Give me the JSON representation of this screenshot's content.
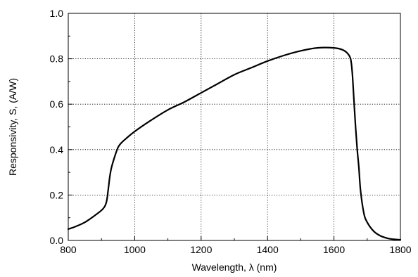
{
  "chart_data": {
    "type": "line",
    "title": "",
    "xlabel": "Wavelength, λ (nm)",
    "ylabel": "Responsivity, S, (A/W)",
    "xlim": [
      800,
      1800
    ],
    "ylim": [
      0.0,
      1.0
    ],
    "xticks": [
      800,
      1000,
      1200,
      1400,
      1600,
      1800
    ],
    "xtick_labels": [
      "800",
      "1000",
      "1200",
      "1400",
      "1600",
      "1800"
    ],
    "yticks": [
      0.0,
      0.2,
      0.4,
      0.6,
      0.8,
      1.0
    ],
    "ytick_labels": [
      "0.0",
      "0.2",
      "0.4",
      "0.6",
      "0.8",
      "1.0"
    ],
    "grid": true,
    "line_color": "#000000",
    "series": [
      {
        "x": [
          800,
          820,
          850,
          880,
          905,
          915,
          920,
          925,
          930,
          940,
          950,
          960,
          975,
          1000,
          1050,
          1100,
          1150,
          1200,
          1250,
          1300,
          1350,
          1400,
          1450,
          1500,
          1550,
          1600,
          1625,
          1640,
          1650,
          1655,
          1660,
          1665,
          1670,
          1675,
          1680,
          1690,
          1700,
          1720,
          1740,
          1760,
          1780,
          1800
        ],
        "y": [
          0.05,
          0.06,
          0.08,
          0.11,
          0.14,
          0.17,
          0.22,
          0.28,
          0.32,
          0.37,
          0.41,
          0.43,
          0.45,
          0.48,
          0.53,
          0.575,
          0.61,
          0.65,
          0.69,
          0.73,
          0.76,
          0.79,
          0.815,
          0.835,
          0.848,
          0.848,
          0.84,
          0.825,
          0.8,
          0.74,
          0.62,
          0.5,
          0.4,
          0.32,
          0.22,
          0.12,
          0.08,
          0.04,
          0.02,
          0.01,
          0.005,
          0.003
        ]
      }
    ]
  }
}
